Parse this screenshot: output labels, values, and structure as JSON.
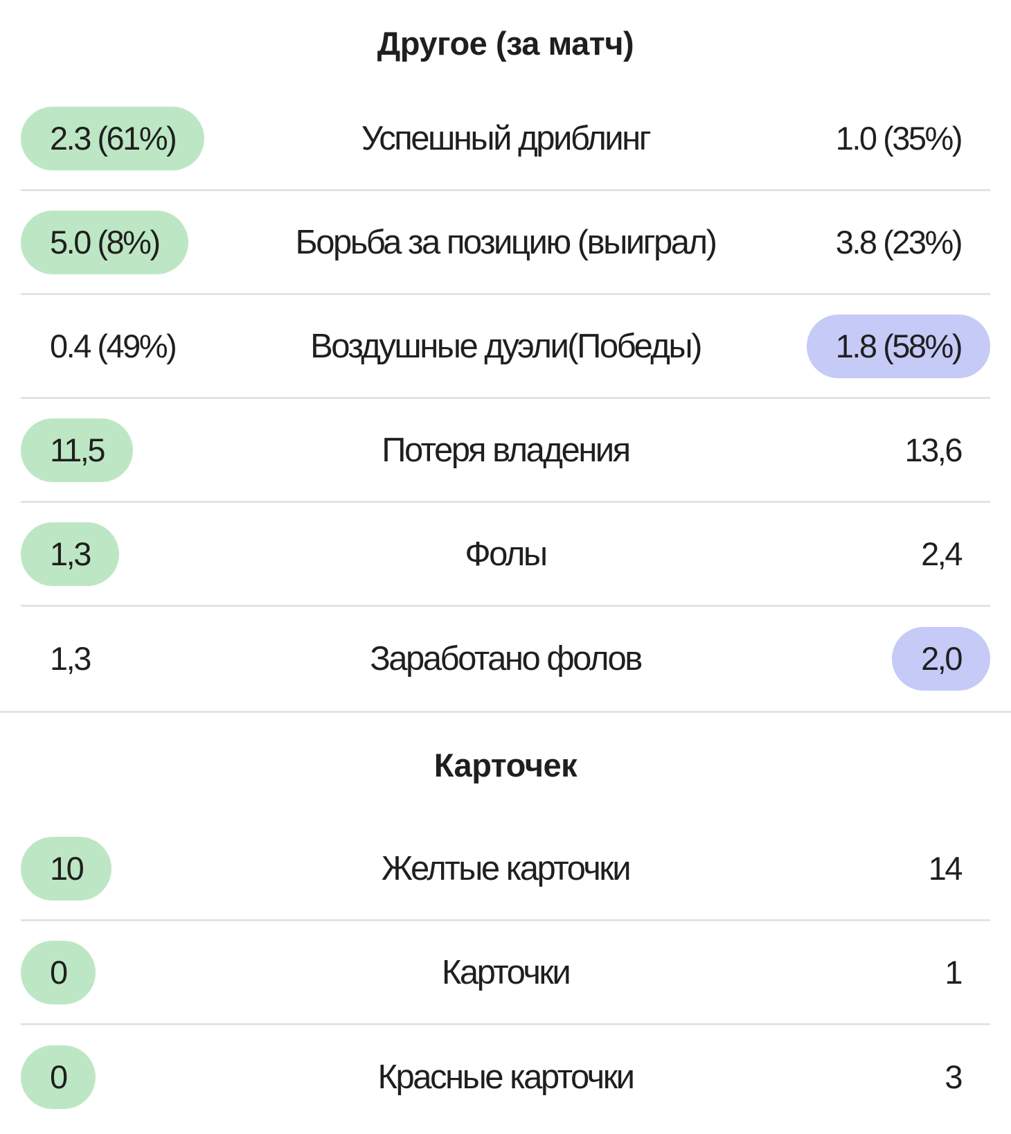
{
  "sections": [
    {
      "title": "Другое (за матч)",
      "rows": [
        {
          "left": "2.3 (61%)",
          "label": "Успешный дриблинг",
          "right": "1.0 (35%)",
          "highlight": "left"
        },
        {
          "left": "5.0 (8%)",
          "label": "Борьба за позицию (выиграл)",
          "right": "3.8 (23%)",
          "highlight": "left"
        },
        {
          "left": "0.4 (49%)",
          "label": "Воздушные дуэли(Победы)",
          "right": "1.8 (58%)",
          "highlight": "right"
        },
        {
          "left": "11,5",
          "label": "Потеря владения",
          "right": "13,6",
          "highlight": "left"
        },
        {
          "left": "1,3",
          "label": "Фолы",
          "right": "2,4",
          "highlight": "left"
        },
        {
          "left": "1,3",
          "label": "Заработано фолов",
          "right": "2,0",
          "highlight": "right"
        }
      ]
    },
    {
      "title": "Карточек",
      "rows": [
        {
          "left": "10",
          "label": "Желтые карточки",
          "right": "14",
          "highlight": "left"
        },
        {
          "left": "0",
          "label": "Карточки",
          "right": "1",
          "highlight": "left"
        },
        {
          "left": "0",
          "label": "Красные карточки",
          "right": "3",
          "highlight": "left"
        }
      ]
    }
  ],
  "colors": {
    "highlight_left": "#bde7c4",
    "highlight_right": "#c5caf7",
    "divider": "#e3e3e3",
    "text": "#1f1f1f"
  }
}
